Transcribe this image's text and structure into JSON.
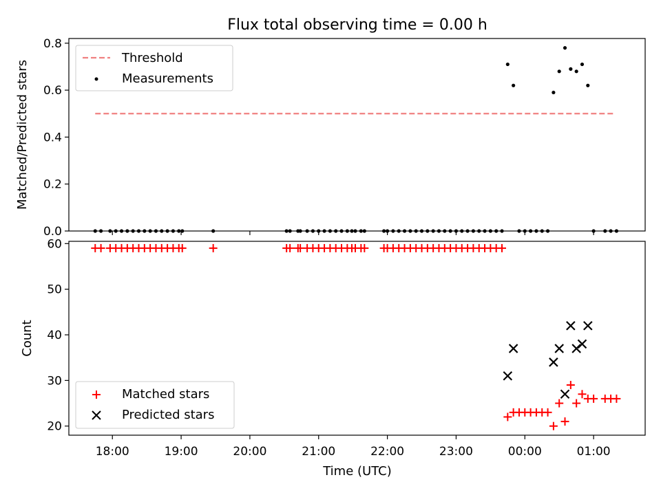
{
  "title": "Flux total observing time = 0.00 h",
  "chart_data": [
    {
      "type": "scatter",
      "ylabel": "Matched/Predicted stars",
      "xlabel": "",
      "xlim": [
        "17:22",
        "01:45"
      ],
      "ylim": [
        0,
        0.82
      ],
      "yticks": [
        0.0,
        0.2,
        0.4,
        0.6,
        0.8
      ],
      "ytick_labels": [
        "0.0",
        "0.2",
        "0.4",
        "0.6",
        "0.8"
      ],
      "legend": {
        "placement": "upper-left",
        "entries": [
          {
            "label": "Threshold",
            "style": "dashed-line",
            "color": "#f08080"
          },
          {
            "label": "Measurements",
            "style": "dot",
            "color": "#000000"
          }
        ]
      },
      "threshold": {
        "name": "Threshold",
        "value": 0.5,
        "x_start": "17:45",
        "x_end": "01:18",
        "color": "#f08080"
      },
      "series": [
        {
          "name": "Measurements",
          "marker": "dot",
          "color": "#000000",
          "points": [
            [
              "17:45",
              0
            ],
            [
              "17:50",
              0
            ],
            [
              "17:58",
              0
            ],
            [
              "18:03",
              0
            ],
            [
              "18:08",
              0
            ],
            [
              "18:13",
              0
            ],
            [
              "18:18",
              0
            ],
            [
              "18:23",
              0
            ],
            [
              "18:28",
              0
            ],
            [
              "18:33",
              0
            ],
            [
              "18:38",
              0
            ],
            [
              "18:43",
              0
            ],
            [
              "18:48",
              0
            ],
            [
              "18:53",
              0
            ],
            [
              "18:58",
              0
            ],
            [
              "19:01",
              0
            ],
            [
              "19:28",
              0
            ],
            [
              "20:32",
              0
            ],
            [
              "20:35",
              0
            ],
            [
              "20:42",
              0
            ],
            [
              "20:44",
              0
            ],
            [
              "20:50",
              0
            ],
            [
              "20:55",
              0
            ],
            [
              "21:00",
              0
            ],
            [
              "21:05",
              0
            ],
            [
              "21:10",
              0
            ],
            [
              "21:15",
              0
            ],
            [
              "21:20",
              0
            ],
            [
              "21:25",
              0
            ],
            [
              "21:29",
              0
            ],
            [
              "21:32",
              0
            ],
            [
              "21:37",
              0
            ],
            [
              "21:40",
              0
            ],
            [
              "21:57",
              0
            ],
            [
              "22:00",
              0
            ],
            [
              "22:05",
              0
            ],
            [
              "22:10",
              0
            ],
            [
              "22:15",
              0
            ],
            [
              "22:20",
              0
            ],
            [
              "22:25",
              0
            ],
            [
              "22:30",
              0
            ],
            [
              "22:35",
              0
            ],
            [
              "22:40",
              0
            ],
            [
              "22:45",
              0
            ],
            [
              "22:50",
              0
            ],
            [
              "22:55",
              0
            ],
            [
              "23:00",
              0
            ],
            [
              "23:05",
              0
            ],
            [
              "23:10",
              0
            ],
            [
              "23:15",
              0
            ],
            [
              "23:20",
              0
            ],
            [
              "23:25",
              0
            ],
            [
              "23:30",
              0
            ],
            [
              "23:35",
              0
            ],
            [
              "23:40",
              0
            ],
            [
              "23:45",
              0.71
            ],
            [
              "23:50",
              0.62
            ],
            [
              "23:55",
              0
            ],
            [
              "00:00",
              0
            ],
            [
              "00:05",
              0
            ],
            [
              "00:10",
              0
            ],
            [
              "00:15",
              0
            ],
            [
              "00:20",
              0
            ],
            [
              "00:25",
              0.59
            ],
            [
              "00:30",
              0.68
            ],
            [
              "00:35",
              0.78
            ],
            [
              "00:40",
              0.69
            ],
            [
              "00:45",
              0.68
            ],
            [
              "00:50",
              0.71
            ],
            [
              "00:55",
              0.62
            ],
            [
              "01:00",
              0
            ],
            [
              "01:10",
              0
            ],
            [
              "01:15",
              0
            ],
            [
              "01:20",
              0
            ]
          ]
        }
      ]
    },
    {
      "type": "scatter",
      "ylabel": "Count",
      "xlabel": "Time (UTC)",
      "xlim": [
        "17:22",
        "01:45"
      ],
      "ylim": [
        18,
        60.5
      ],
      "yticks": [
        20,
        30,
        40,
        50,
        60
      ],
      "ytick_labels": [
        "20",
        "30",
        "40",
        "50",
        "60"
      ],
      "xticks": [
        "18:00",
        "19:00",
        "20:00",
        "21:00",
        "22:00",
        "23:00",
        "00:00",
        "01:00"
      ],
      "legend": {
        "placement": "lower-left",
        "entries": [
          {
            "label": "Matched stars",
            "style": "plus",
            "color": "#ff0000"
          },
          {
            "label": "Predicted stars",
            "style": "x",
            "color": "#000000"
          }
        ]
      },
      "series": [
        {
          "name": "Matched stars",
          "marker": "plus",
          "color": "#ff0000",
          "points": [
            [
              "17:45",
              59
            ],
            [
              "17:50",
              59
            ],
            [
              "17:58",
              59
            ],
            [
              "18:03",
              59
            ],
            [
              "18:08",
              59
            ],
            [
              "18:13",
              59
            ],
            [
              "18:18",
              59
            ],
            [
              "18:23",
              59
            ],
            [
              "18:28",
              59
            ],
            [
              "18:33",
              59
            ],
            [
              "18:38",
              59
            ],
            [
              "18:43",
              59
            ],
            [
              "18:48",
              59
            ],
            [
              "18:53",
              59
            ],
            [
              "18:58",
              59
            ],
            [
              "19:01",
              59
            ],
            [
              "19:28",
              59
            ],
            [
              "20:32",
              59
            ],
            [
              "20:35",
              59
            ],
            [
              "20:42",
              59
            ],
            [
              "20:44",
              59
            ],
            [
              "20:50",
              59
            ],
            [
              "20:55",
              59
            ],
            [
              "21:00",
              59
            ],
            [
              "21:05",
              59
            ],
            [
              "21:10",
              59
            ],
            [
              "21:15",
              59
            ],
            [
              "21:20",
              59
            ],
            [
              "21:25",
              59
            ],
            [
              "21:29",
              59
            ],
            [
              "21:32",
              59
            ],
            [
              "21:37",
              59
            ],
            [
              "21:40",
              59
            ],
            [
              "21:57",
              59
            ],
            [
              "22:00",
              59
            ],
            [
              "22:05",
              59
            ],
            [
              "22:10",
              59
            ],
            [
              "22:15",
              59
            ],
            [
              "22:20",
              59
            ],
            [
              "22:25",
              59
            ],
            [
              "22:30",
              59
            ],
            [
              "22:35",
              59
            ],
            [
              "22:40",
              59
            ],
            [
              "22:45",
              59
            ],
            [
              "22:50",
              59
            ],
            [
              "22:55",
              59
            ],
            [
              "23:00",
              59
            ],
            [
              "23:05",
              59
            ],
            [
              "23:10",
              59
            ],
            [
              "23:15",
              59
            ],
            [
              "23:20",
              59
            ],
            [
              "23:25",
              59
            ],
            [
              "23:30",
              59
            ],
            [
              "23:35",
              59
            ],
            [
              "23:40",
              59
            ],
            [
              "23:45",
              22
            ],
            [
              "23:50",
              23
            ],
            [
              "23:55",
              23
            ],
            [
              "00:00",
              23
            ],
            [
              "00:05",
              23
            ],
            [
              "00:10",
              23
            ],
            [
              "00:15",
              23
            ],
            [
              "00:20",
              23
            ],
            [
              "00:25",
              20
            ],
            [
              "00:30",
              25
            ],
            [
              "00:35",
              21
            ],
            [
              "00:40",
              29
            ],
            [
              "00:45",
              25
            ],
            [
              "00:50",
              27
            ],
            [
              "00:55",
              26
            ],
            [
              "01:00",
              26
            ],
            [
              "01:10",
              26
            ],
            [
              "01:15",
              26
            ],
            [
              "01:20",
              26
            ]
          ]
        },
        {
          "name": "Predicted stars",
          "marker": "x",
          "color": "#000000",
          "points": [
            [
              "23:45",
              31
            ],
            [
              "23:50",
              37
            ],
            [
              "00:25",
              34
            ],
            [
              "00:30",
              37
            ],
            [
              "00:35",
              27
            ],
            [
              "00:40",
              42
            ],
            [
              "00:45",
              37
            ],
            [
              "00:50",
              38
            ],
            [
              "00:55",
              42
            ]
          ]
        }
      ]
    }
  ]
}
